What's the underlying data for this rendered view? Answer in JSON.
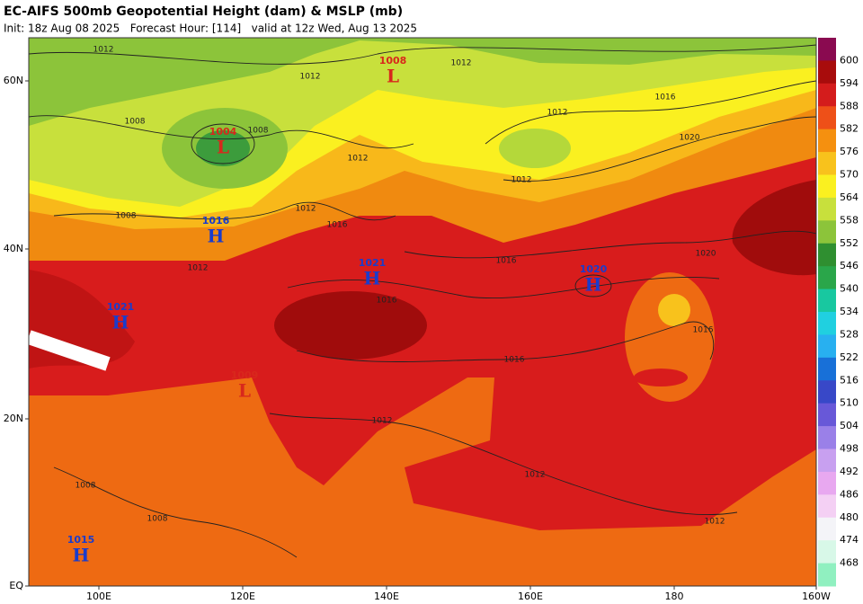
{
  "header": {
    "title": "EC-AIFS 500mb Geopotential Height (dam) & MSLP (mb)",
    "subtitle": "Init: 18z Aug 08 2025   Forecast Hour: [114]   valid at 12z Wed, Aug 13 2025"
  },
  "colorbar": {
    "labels": [
      "600",
      "594",
      "588",
      "582",
      "576",
      "570",
      "564",
      "558",
      "552",
      "546",
      "540",
      "534",
      "528",
      "522",
      "516",
      "510",
      "504",
      "498",
      "492",
      "486",
      "480",
      "474",
      "468"
    ],
    "colors": [
      "#8a0a50",
      "#a80c0c",
      "#d41c1c",
      "#ee5018",
      "#f5900f",
      "#f8c21c",
      "#faf020",
      "#c8e03c",
      "#8cc43a",
      "#2f8f30",
      "#2aa64a",
      "#18c8a0",
      "#20d0e0",
      "#28b0f0",
      "#1870d8",
      "#3848c8",
      "#6858d8",
      "#9a80e8",
      "#c8a0f0",
      "#e8a8f0",
      "#f4d0f4",
      "#f4f4f8",
      "#d8f8e8",
      "#90f0c0"
    ]
  },
  "axes": {
    "lat": [
      "60N",
      "40N",
      "20N",
      "EQ"
    ],
    "lon": [
      "100E",
      "120E",
      "140E",
      "160E",
      "180",
      "160W"
    ]
  },
  "centers": [
    {
      "type": "L",
      "value": "1008"
    },
    {
      "type": "L",
      "value": "1004"
    },
    {
      "type": "H",
      "value": "1016"
    },
    {
      "type": "H",
      "value": "1021"
    },
    {
      "type": "H",
      "value": "1020"
    },
    {
      "type": "H",
      "value": "1021"
    },
    {
      "type": "L",
      "value": "1009"
    },
    {
      "type": "H",
      "value": "1015"
    }
  ],
  "isobar_labels": [
    "1012",
    "1012",
    "1012",
    "1008",
    "1008",
    "1016",
    "1012",
    "1020",
    "1012",
    "1012",
    "1008",
    "1012",
    "1016",
    "1012",
    "1016",
    "1020",
    "1016",
    "1016",
    "1016",
    "1012",
    "1012",
    "1008",
    "1008",
    "1012"
  ]
}
